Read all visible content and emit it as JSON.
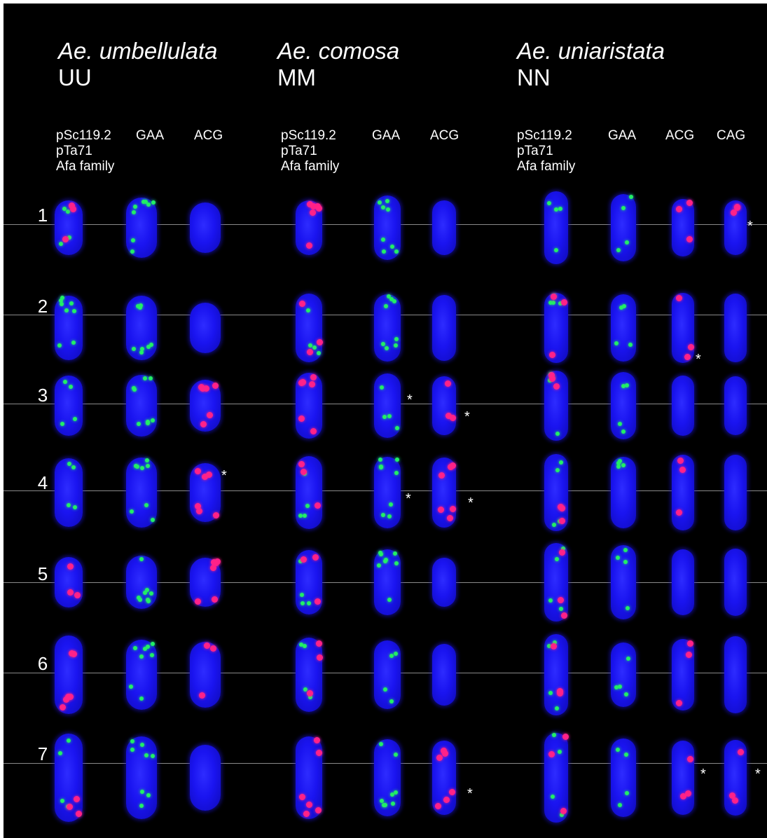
{
  "figure": {
    "background_color": "#000000",
    "dapi_color": "#1a14f0",
    "signal_green": "#22ee66",
    "signal_red": "#ff2288",
    "species": [
      {
        "name": "Ae. umbellulata",
        "genome": "UU",
        "probes": [
          "pSc119.2\npTa71\nAfa family",
          "GAA",
          "ACG"
        ]
      },
      {
        "name": "Ae. comosa",
        "genome": "MM",
        "probes": [
          "pSc119.2\npTa71\nAfa family",
          "GAA",
          "ACG"
        ]
      },
      {
        "name": "Ae. uniaristata",
        "genome": "NN",
        "probes": [
          "pSc119.2\npTa71\nAfa family",
          "GAA",
          "ACG",
          "CAG"
        ]
      }
    ],
    "rows": [
      "1",
      "2",
      "3",
      "4",
      "5",
      "6",
      "7"
    ],
    "asterisk_symbol": "*"
  }
}
